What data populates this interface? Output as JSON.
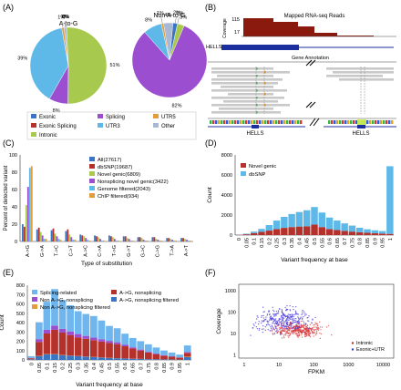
{
  "panels": {
    "A": {
      "label": "(A)",
      "pies": [
        {
          "title": "A-to-G",
          "slices": [
            {
              "name": "Exonic",
              "value": 0,
              "label": "0%",
              "color": "#3a75c4"
            },
            {
              "name": "Exonic Splicing",
              "value": 0,
              "label": "0%",
              "color": "#b5312b"
            },
            {
              "name": "Intronic",
              "value": 51,
              "label": "51%",
              "color": "#a7c94d"
            },
            {
              "name": "Splicing",
              "value": 8,
              "label": "8%",
              "color": "#9b4fd0"
            },
            {
              "name": "UTR3",
              "value": 39,
              "label": "39%",
              "color": "#5fb9e8"
            },
            {
              "name": "UTR5",
              "value": 1,
              "label": "1%",
              "color": "#e59a3c"
            },
            {
              "name": "Other",
              "value": 1,
              "label": "1%",
              "color": "#a9b8d4"
            }
          ]
        },
        {
          "title": "Non A-to-G",
          "slices": [
            {
              "name": "Exonic",
              "value": 2,
              "label": "2%",
              "color": "#3a75c4"
            },
            {
              "name": "Exonic Splicing",
              "value": 0,
              "label": "0%",
              "color": "#b5312b"
            },
            {
              "name": "Intronic",
              "value": 3,
              "label": "3%",
              "color": "#a7c94d"
            },
            {
              "name": "Splicing",
              "value": 82,
              "label": "82%",
              "color": "#9b4fd0"
            },
            {
              "name": "UTR3",
              "value": 8,
              "label": "8%",
              "color": "#5fb9e8"
            },
            {
              "name": "UTR5",
              "value": 1,
              "label": "1%",
              "color": "#e59a3c"
            },
            {
              "name": "Other",
              "value": 4,
              "label": "4%",
              "color": "#a9b8d4"
            }
          ]
        }
      ],
      "legend": [
        {
          "name": "Exonic",
          "color": "#3a75c4"
        },
        {
          "name": "Exonic Splicing",
          "color": "#b5312b"
        },
        {
          "name": "Intronic",
          "color": "#a7c94d"
        },
        {
          "name": "Splicing",
          "color": "#9b4fd0"
        },
        {
          "name": "UTR3",
          "color": "#5fb9e8"
        },
        {
          "name": "UTR5",
          "color": "#e59a3c"
        },
        {
          "name": "Other",
          "color": "#a9b8d4"
        }
      ]
    },
    "B": {
      "label": "(B)",
      "reads_title": "Mapped RNA-seq Reads",
      "coverage_label": "Coverage",
      "coverage_ticks": [
        "115",
        "17"
      ],
      "gene_name": "HELLS",
      "gene_annotation_label": "Gene Annotation",
      "bottom_labels": [
        "HELLS",
        "HELLS"
      ]
    },
    "C": {
      "label": "(C)"
    },
    "D": {
      "label": "(D)"
    },
    "E": {
      "label": "(E)"
    },
    "F": {
      "label": "(F)"
    }
  },
  "chart_data": [
    {
      "panel": "C",
      "type": "bar",
      "xlabel": "Type of substitution",
      "ylabel": "Percent of detected variant",
      "ylim": [
        0,
        100
      ],
      "yticks": [
        0,
        20,
        40,
        60,
        80,
        100
      ],
      "categories": [
        "A->G",
        "G->A",
        "T->C",
        "C->T",
        "A->C",
        "C->A",
        "T->G",
        "G->T",
        "G->C",
        "C->G",
        "T->A",
        "A->T"
      ],
      "series": [
        {
          "name": "All(27617)",
          "color": "#3a75c4",
          "values": [
            20,
            14,
            13,
            12,
            8,
            7,
            7,
            6,
            5,
            5,
            4,
            4
          ]
        },
        {
          "name": "dbSNP(19687)",
          "color": "#b5312b",
          "values": [
            17,
            16,
            15,
            14,
            7,
            6,
            6,
            6,
            5,
            5,
            4,
            4
          ]
        },
        {
          "name": "Novel genic(6809)",
          "color": "#a7c94d",
          "values": [
            42,
            11,
            9,
            8,
            6,
            5,
            5,
            4,
            4,
            3,
            3,
            3
          ]
        },
        {
          "name": "Nonsplicing novel genic(3422)",
          "color": "#9b4fd0",
          "values": [
            63,
            7,
            6,
            5,
            4,
            3,
            3,
            3,
            2,
            2,
            2,
            2
          ]
        },
        {
          "name": "Genome filtered(2043)",
          "color": "#5fb9e8",
          "values": [
            85,
            3,
            3,
            2,
            2,
            1,
            1,
            1,
            1,
            1,
            1,
            1
          ]
        },
        {
          "name": "ChIP filtered(934)",
          "color": "#e59a3c",
          "values": [
            87,
            3,
            2,
            2,
            1,
            1,
            1,
            1,
            1,
            1,
            1,
            1
          ]
        }
      ]
    },
    {
      "panel": "D",
      "type": "bar",
      "stacked": true,
      "xlabel": "Variant frequency at base",
      "ylabel": "Count",
      "ylim": [
        0,
        8000
      ],
      "yticks": [
        0,
        2000,
        4000,
        6000,
        8000
      ],
      "categories": [
        "0",
        "0.05",
        "0.1",
        "0.15",
        "0.2",
        "0.25",
        "0.3",
        "0.35",
        "0.4",
        "0.45",
        "0.5",
        "0.55",
        "0.6",
        "0.65",
        "0.7",
        "0.75",
        "0.8",
        "0.85",
        "0.9",
        "0.95",
        "1"
      ],
      "series": [
        {
          "name": "Novel genic",
          "color": "#b5312b",
          "values": [
            30,
            80,
            200,
            320,
            450,
            600,
            720,
            800,
            850,
            880,
            1050,
            800,
            600,
            500,
            420,
            350,
            280,
            230,
            180,
            150,
            120
          ]
        },
        {
          "name": "dbSNP",
          "color": "#5fb9e8",
          "values": [
            20,
            60,
            150,
            300,
            550,
            850,
            1100,
            1300,
            1450,
            1600,
            1750,
            1450,
            1150,
            950,
            750,
            600,
            450,
            350,
            300,
            250,
            6750
          ]
        }
      ]
    },
    {
      "panel": "E",
      "type": "bar",
      "stacked": true,
      "xlabel": "Variant frequency at base",
      "ylabel": "Count",
      "ylim": [
        0,
        800
      ],
      "yticks": [
        0,
        100,
        200,
        300,
        400,
        500,
        600,
        700,
        800
      ],
      "categories": [
        "0",
        "0.05",
        "0.1",
        "0.15",
        "0.2",
        "0.25",
        "0.3",
        "0.35",
        "0.4",
        "0.45",
        "0.5",
        "0.55",
        "0.6",
        "0.65",
        "0.7",
        "0.75",
        "0.8",
        "0.85",
        "0.9",
        "0.95",
        "1"
      ],
      "series": [
        {
          "name": "A->G, nonsplicing filtered",
          "color": "#3a75c4",
          "values": [
            5,
            40,
            60,
            60,
            50,
            45,
            40,
            35,
            30,
            25,
            20,
            18,
            15,
            12,
            10,
            8,
            6,
            5,
            4,
            3,
            30
          ]
        },
        {
          "name": "Non A->G, nonsplicing filtered",
          "color": "#e59a3c",
          "values": [
            2,
            3,
            3,
            3,
            3,
            2,
            2,
            2,
            2,
            2,
            2,
            1,
            1,
            1,
            1,
            1,
            1,
            1,
            1,
            1,
            5
          ]
        },
        {
          "name": "A->G, nonsplicing",
          "color": "#b5312b",
          "values": [
            10,
            150,
            220,
            260,
            240,
            220,
            200,
            190,
            180,
            170,
            160,
            150,
            130,
            110,
            90,
            70,
            55,
            40,
            30,
            20,
            40
          ]
        },
        {
          "name": "Non A->G, nonsplicing",
          "color": "#9b4fd0",
          "values": [
            3,
            30,
            40,
            45,
            40,
            38,
            35,
            30,
            28,
            25,
            22,
            20,
            15,
            12,
            10,
            8,
            6,
            5,
            4,
            3,
            10
          ]
        },
        {
          "name": "Splicing-related",
          "color": "#6fb6ee",
          "values": [
            20,
            180,
            300,
            390,
            310,
            280,
            245,
            235,
            230,
            200,
            160,
            150,
            120,
            100,
            90,
            80,
            65,
            50,
            40,
            30,
            70
          ]
        }
      ]
    },
    {
      "panel": "F",
      "type": "scatter",
      "xlabel": "FPKM",
      "ylabel": "Coverage",
      "xscale": "log",
      "yscale": "log",
      "xlim": [
        0.7,
        20000
      ],
      "ylim": [
        0.7,
        2000
      ],
      "xticks": [
        1,
        10,
        100,
        1000,
        10000
      ],
      "yticks": [
        1,
        10,
        100,
        1000
      ],
      "ytick_labels": [
        "1",
        "10",
        "100",
        "1000"
      ],
      "series": [
        {
          "name": "Intronic",
          "color": "#b5312b"
        },
        {
          "name": "Exonic+UTR",
          "color": "#3a3ad6"
        }
      ]
    }
  ]
}
